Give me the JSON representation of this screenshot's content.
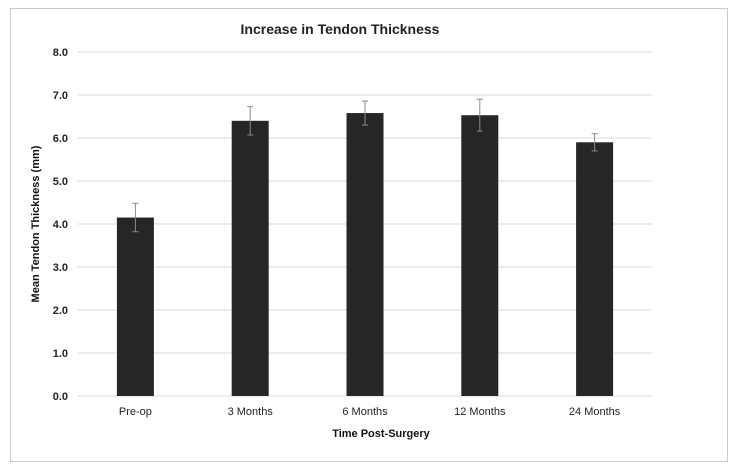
{
  "chart_data": {
    "type": "bar",
    "title": "Increase in Tendon Thickness",
    "xlabel": "Time Post-Surgery",
    "ylabel": "Mean Tendon Thickness (mm)",
    "categories": [
      "Pre-op",
      "3 Months",
      "6 Months",
      "12 Months",
      "24 Months"
    ],
    "values": [
      4.15,
      6.4,
      6.58,
      6.53,
      5.9
    ],
    "error_bars": [
      0.33,
      0.33,
      0.28,
      0.37,
      0.2
    ],
    "ylim": [
      0,
      8
    ],
    "yticks": [
      "0.0",
      "1.0",
      "2.0",
      "3.0",
      "4.0",
      "5.0",
      "6.0",
      "7.0",
      "8.0"
    ],
    "grid": true,
    "bar_color": "#262626",
    "error_color": "#8a8a8a",
    "grid_color": "#d9d9d9"
  }
}
